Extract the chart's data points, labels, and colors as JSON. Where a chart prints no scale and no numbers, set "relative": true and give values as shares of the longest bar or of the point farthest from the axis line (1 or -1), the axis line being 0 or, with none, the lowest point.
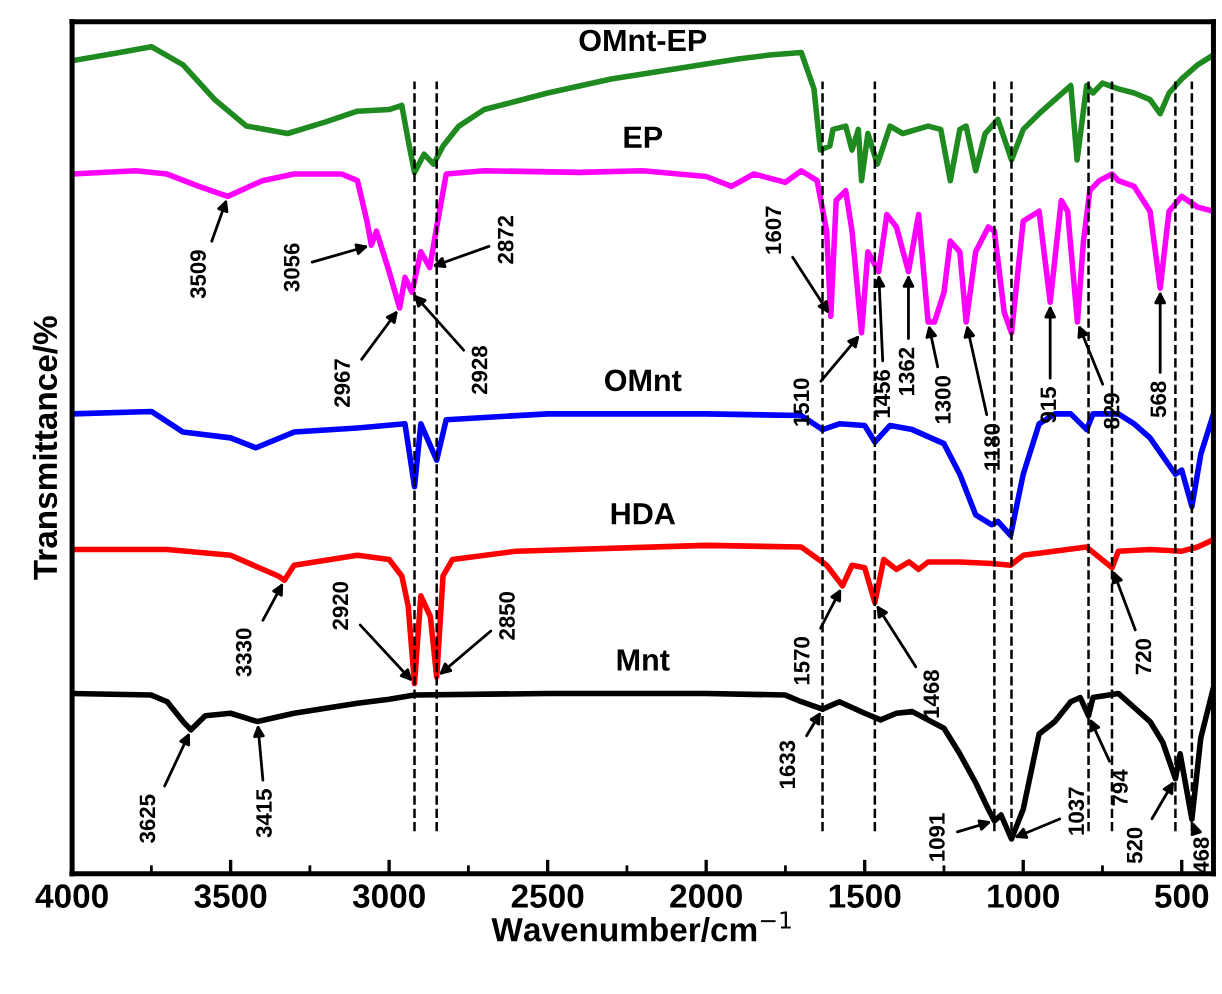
{
  "chart_data": {
    "type": "line",
    "relative": true,
    "xlabel": "Wavenumber/cm$^{−1}$",
    "ylabel": "Transmittance/%",
    "xlim": [
      4000,
      400
    ],
    "xticks": [
      4000,
      3500,
      3000,
      2500,
      2000,
      1500,
      1000,
      500
    ],
    "tick_labels": "x",
    "line_style": "solid",
    "marker": "none",
    "series": [
      {
        "name": "OMnt-EP",
        "color": "#1f8a1f",
        "x": [
          4000,
          3850,
          3750,
          3650,
          3550,
          3450,
          3320,
          3200,
          3100,
          3000,
          2960,
          2940,
          2920,
          2890,
          2860,
          2830,
          2780,
          2700,
          2500,
          2300,
          2100,
          1900,
          1800,
          1700,
          1660,
          1640,
          1610,
          1600,
          1560,
          1540,
          1520,
          1510,
          1490,
          1460,
          1420,
          1380,
          1300,
          1260,
          1230,
          1200,
          1180,
          1150,
          1120,
          1080,
          1037,
          1000,
          950,
          900,
          850,
          830,
          800,
          780,
          750,
          700,
          650,
          600,
          568,
          540,
          500,
          450,
          400
        ],
        "values": [
          0.983,
          0.993,
          1.0,
          0.978,
          0.936,
          0.904,
          0.895,
          0.909,
          0.922,
          0.924,
          0.929,
          0.887,
          0.848,
          0.87,
          0.858,
          0.88,
          0.904,
          0.924,
          0.944,
          0.961,
          0.973,
          0.985,
          0.99,
          0.993,
          0.949,
          0.875,
          0.88,
          0.9,
          0.904,
          0.875,
          0.9,
          0.838,
          0.895,
          0.858,
          0.904,
          0.895,
          0.904,
          0.9,
          0.838,
          0.9,
          0.904,
          0.85,
          0.895,
          0.912,
          0.863,
          0.9,
          0.919,
          0.936,
          0.953,
          0.863,
          0.953,
          0.944,
          0.956,
          0.949,
          0.944,
          0.936,
          0.919,
          0.944,
          0.961,
          0.978,
          0.99
        ]
      },
      {
        "name": "EP",
        "color": "#ff00ff",
        "x": [
          4000,
          3800,
          3700,
          3600,
          3509,
          3400,
          3300,
          3150,
          3100,
          3070,
          3056,
          3040,
          3000,
          2967,
          2950,
          2928,
          2900,
          2872,
          2850,
          2820,
          2700,
          2400,
          2200,
          2000,
          1920,
          1850,
          1750,
          1700,
          1650,
          1620,
          1607,
          1590,
          1560,
          1540,
          1510,
          1490,
          1456,
          1430,
          1400,
          1362,
          1330,
          1300,
          1280,
          1250,
          1230,
          1200,
          1180,
          1150,
          1110,
          1091,
          1060,
          1037,
          1000,
          950,
          915,
          880,
          860,
          829,
          810,
          790,
          760,
          720,
          700,
          650,
          600,
          568,
          540,
          500,
          450,
          400
        ],
        "values": [
          0.846,
          0.85,
          0.846,
          0.831,
          0.819,
          0.838,
          0.846,
          0.846,
          0.838,
          0.789,
          0.76,
          0.777,
          0.728,
          0.684,
          0.721,
          0.703,
          0.752,
          0.733,
          0.782,
          0.846,
          0.85,
          0.848,
          0.85,
          0.843,
          0.831,
          0.846,
          0.836,
          0.85,
          0.838,
          0.777,
          0.674,
          0.814,
          0.826,
          0.777,
          0.654,
          0.752,
          0.728,
          0.797,
          0.782,
          0.728,
          0.797,
          0.667,
          0.667,
          0.703,
          0.765,
          0.752,
          0.667,
          0.752,
          0.782,
          0.777,
          0.679,
          0.654,
          0.789,
          0.801,
          0.691,
          0.814,
          0.801,
          0.667,
          0.765,
          0.826,
          0.838,
          0.846,
          0.838,
          0.831,
          0.801,
          0.708,
          0.801,
          0.819,
          0.806,
          0.801
        ]
      },
      {
        "name": "OMnt",
        "color": "#0000ff",
        "x": [
          4000,
          3750,
          3650,
          3500,
          3420,
          3300,
          3100,
          2950,
          2920,
          2900,
          2850,
          2820,
          2500,
          2000,
          1700,
          1633,
          1580,
          1500,
          1468,
          1420,
          1350,
          1250,
          1200,
          1150,
          1100,
          1080,
          1040,
          1000,
          950,
          900,
          850,
          800,
          780,
          700,
          650,
          600,
          520,
          500,
          468,
          440,
          400
        ],
        "values": [
          0.556,
          0.559,
          0.534,
          0.527,
          0.515,
          0.534,
          0.539,
          0.544,
          0.468,
          0.544,
          0.5,
          0.549,
          0.556,
          0.556,
          0.554,
          0.537,
          0.544,
          0.542,
          0.522,
          0.542,
          0.537,
          0.52,
          0.483,
          0.434,
          0.422,
          0.426,
          0.409,
          0.483,
          0.544,
          0.556,
          0.556,
          0.537,
          0.556,
          0.556,
          0.544,
          0.527,
          0.483,
          0.488,
          0.444,
          0.507,
          0.556
        ]
      },
      {
        "name": "HDA",
        "color": "#ff0000",
        "x": [
          4000,
          3700,
          3500,
          3350,
          3330,
          3300,
          3100,
          3000,
          2960,
          2940,
          2920,
          2900,
          2870,
          2850,
          2830,
          2800,
          2600,
          2000,
          1700,
          1620,
          1570,
          1540,
          1500,
          1468,
          1440,
          1400,
          1360,
          1330,
          1300,
          1200,
          1100,
          1040,
          1000,
          800,
          720,
          700,
          600,
          500,
          450,
          400
        ],
        "values": [
          0.392,
          0.392,
          0.385,
          0.36,
          0.355,
          0.373,
          0.385,
          0.38,
          0.36,
          0.324,
          0.23,
          0.336,
          0.311,
          0.238,
          0.36,
          0.38,
          0.39,
          0.397,
          0.395,
          0.373,
          0.348,
          0.373,
          0.37,
          0.328,
          0.38,
          0.368,
          0.377,
          0.368,
          0.377,
          0.377,
          0.375,
          0.373,
          0.385,
          0.395,
          0.37,
          0.39,
          0.392,
          0.39,
          0.395,
          0.404
        ]
      },
      {
        "name": "Mnt",
        "color": "#000000",
        "x": [
          4000,
          3750,
          3700,
          3650,
          3625,
          3580,
          3500,
          3415,
          3300,
          3100,
          3000,
          2920,
          2500,
          2000,
          1750,
          1700,
          1633,
          1580,
          1500,
          1450,
          1400,
          1350,
          1250,
          1200,
          1150,
          1110,
          1091,
          1070,
          1037,
          1000,
          950,
          900,
          850,
          820,
          794,
          780,
          700,
          650,
          600,
          560,
          520,
          505,
          468,
          440,
          400
        ],
        "values": [
          0.218,
          0.216,
          0.208,
          0.184,
          0.174,
          0.191,
          0.194,
          0.184,
          0.194,
          0.206,
          0.211,
          0.216,
          0.218,
          0.218,
          0.216,
          0.208,
          0.199,
          0.208,
          0.194,
          0.186,
          0.194,
          0.196,
          0.176,
          0.145,
          0.11,
          0.078,
          0.064,
          0.071,
          0.042,
          0.078,
          0.169,
          0.184,
          0.208,
          0.213,
          0.191,
          0.213,
          0.218,
          0.201,
          0.184,
          0.159,
          0.115,
          0.145,
          0.066,
          0.164,
          0.225
        ]
      }
    ],
    "ref_lines": [
      {
        "axis": "x",
        "value": 2920,
        "color": "#000000",
        "line_style": "dashed"
      },
      {
        "axis": "x",
        "value": 2850,
        "color": "#000000",
        "line_style": "dashed"
      },
      {
        "axis": "x",
        "value": 1633,
        "color": "#000000",
        "line_style": "dashed"
      },
      {
        "axis": "x",
        "value": 1468,
        "color": "#000000",
        "line_style": "dashed"
      },
      {
        "axis": "x",
        "value": 1091,
        "color": "#000000",
        "line_style": "dashed"
      },
      {
        "axis": "x",
        "value": 1037,
        "color": "#000000",
        "line_style": "dashed"
      },
      {
        "axis": "x",
        "value": 794,
        "color": "#000000",
        "line_style": "dashed"
      },
      {
        "axis": "x",
        "value": 720,
        "color": "#000000",
        "line_style": "dashed"
      },
      {
        "axis": "x",
        "value": 520,
        "color": "#000000",
        "line_style": "dashed"
      },
      {
        "axis": "x",
        "value": 468,
        "color": "#000000",
        "line_style": "dashed"
      }
    ],
    "annotations": [
      {
        "text": "3509",
        "x": 3509,
        "y": 0.819
      },
      {
        "text": "3056",
        "x": 3056,
        "y": 0.76
      },
      {
        "text": "2967",
        "x": 2967,
        "y": 0.684
      },
      {
        "text": "2928",
        "x": 2928,
        "y": 0.703
      },
      {
        "text": "2872",
        "x": 2872,
        "y": 0.733
      },
      {
        "text": "1607",
        "x": 1607,
        "y": 0.674
      },
      {
        "text": "1510",
        "x": 1510,
        "y": 0.654
      },
      {
        "text": "1456",
        "x": 1456,
        "y": 0.728
      },
      {
        "text": "1362",
        "x": 1362,
        "y": 0.728
      },
      {
        "text": "1300",
        "x": 1300,
        "y": 0.667
      },
      {
        "text": "1180",
        "x": 1180,
        "y": 0.667
      },
      {
        "text": "915",
        "x": 915,
        "y": 0.691
      },
      {
        "text": "829",
        "x": 829,
        "y": 0.667
      },
      {
        "text": "568",
        "x": 568,
        "y": 0.708
      },
      {
        "text": "3330",
        "x": 3330,
        "y": 0.355
      },
      {
        "text": "2920",
        "x": 2920,
        "y": 0.23
      },
      {
        "text": "2850",
        "x": 2850,
        "y": 0.238
      },
      {
        "text": "1570",
        "x": 1570,
        "y": 0.348
      },
      {
        "text": "1468",
        "x": 1468,
        "y": 0.328
      },
      {
        "text": "720",
        "x": 720,
        "y": 0.37
      },
      {
        "text": "3625",
        "x": 3625,
        "y": 0.174
      },
      {
        "text": "3415",
        "x": 3415,
        "y": 0.184
      },
      {
        "text": "1633",
        "x": 1633,
        "y": 0.199
      },
      {
        "text": "1091",
        "x": 1091,
        "y": 0.064
      },
      {
        "text": "1037",
        "x": 1037,
        "y": 0.042
      },
      {
        "text": "794",
        "x": 794,
        "y": 0.191
      },
      {
        "text": "520",
        "x": 520,
        "y": 0.115
      },
      {
        "text": "468",
        "x": 468,
        "y": 0.066
      }
    ]
  }
}
